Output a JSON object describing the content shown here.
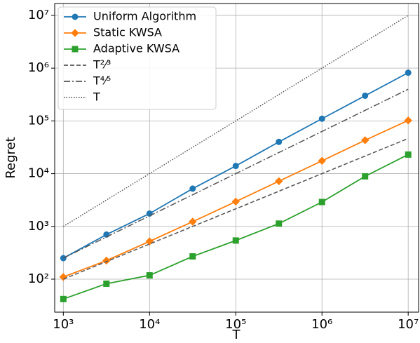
{
  "chart_data": {
    "type": "line",
    "xlabel": "T",
    "ylabel": "Regret",
    "xscale": "log",
    "yscale": "log",
    "grid": true,
    "legend": "upper left",
    "x": [
      1000,
      3162,
      10000,
      31623,
      100000,
      316228,
      1000000,
      3162278,
      10000000
    ],
    "xlim": [
      794,
      13200000
    ],
    "ylim": [
      23.7,
      16800000
    ],
    "xticks": [
      {
        "value": 1000,
        "label": "10³"
      },
      {
        "value": 10000,
        "label": "10⁴"
      },
      {
        "value": 100000,
        "label": "10⁵"
      },
      {
        "value": 1000000,
        "label": "10⁶"
      },
      {
        "value": 10000000,
        "label": "10⁷"
      }
    ],
    "yticks": [
      {
        "value": 100,
        "label": "10²"
      },
      {
        "value": 1000,
        "label": "10³"
      },
      {
        "value": 10000,
        "label": "10⁴"
      },
      {
        "value": 100000,
        "label": "10⁵"
      },
      {
        "value": 1000000,
        "label": "10⁶"
      },
      {
        "value": 10000000,
        "label": "10⁷"
      }
    ],
    "series": [
      {
        "name": "Uniform Algorithm",
        "color": "#1f77b4",
        "marker": "circle",
        "dash": "solid",
        "values": [
          250,
          700,
          1750,
          5200,
          14000,
          40000,
          110000,
          300000,
          820000
        ]
      },
      {
        "name": "Static KWSA",
        "color": "#ff7f0e",
        "marker": "diamond",
        "dash": "solid",
        "values": [
          110,
          225,
          520,
          1230,
          2950,
          7200,
          17500,
          43000,
          102000
        ]
      },
      {
        "name": "Adaptive KWSA",
        "color": "#2ca02c",
        "marker": "square",
        "dash": "solid",
        "values": [
          42,
          82,
          118,
          270,
          540,
          1130,
          2900,
          8900,
          23000
        ]
      },
      {
        "name": "T²⁄³",
        "color": "#555555",
        "marker": "none",
        "dash": "dashed",
        "values": [
          100,
          215,
          464,
          1000,
          2154,
          4642,
          10000,
          21544,
          46416
        ]
      },
      {
        "name": "T⁴⁄⁵",
        "color": "#555555",
        "marker": "none",
        "dash": "dashdot",
        "values": [
          251,
          631,
          1585,
          3981,
          10000,
          25119,
          63096,
          158489,
          398107
        ]
      },
      {
        "name": "T",
        "color": "#555555",
        "marker": "none",
        "dash": "dotted",
        "values": [
          1000,
          3162,
          10000,
          31623,
          100000,
          316228,
          1000000,
          3162278,
          10000000
        ]
      }
    ]
  }
}
